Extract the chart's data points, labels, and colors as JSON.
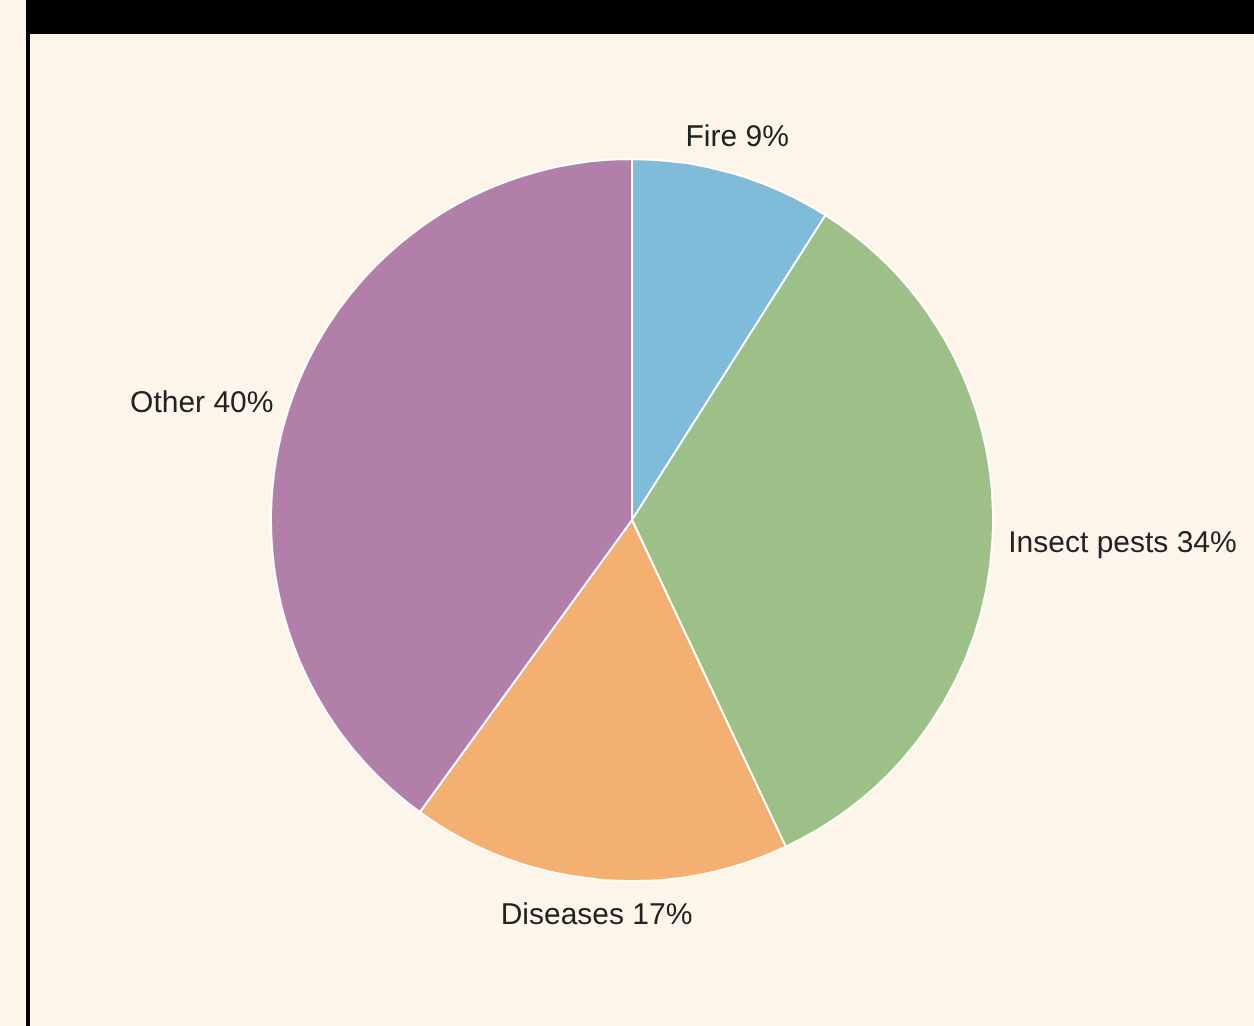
{
  "chart_data": {
    "type": "pie",
    "categories": [
      "Fire",
      "Insect pests",
      "Diseases",
      "Other"
    ],
    "values": [
      9,
      34,
      17,
      40
    ],
    "value_labels": [
      "9%",
      "34%",
      "17%",
      "40%"
    ],
    "colors": [
      "#7fbcd9",
      "#9dbf88",
      "#f4af72",
      "#b27faa"
    ],
    "legend": false
  }
}
